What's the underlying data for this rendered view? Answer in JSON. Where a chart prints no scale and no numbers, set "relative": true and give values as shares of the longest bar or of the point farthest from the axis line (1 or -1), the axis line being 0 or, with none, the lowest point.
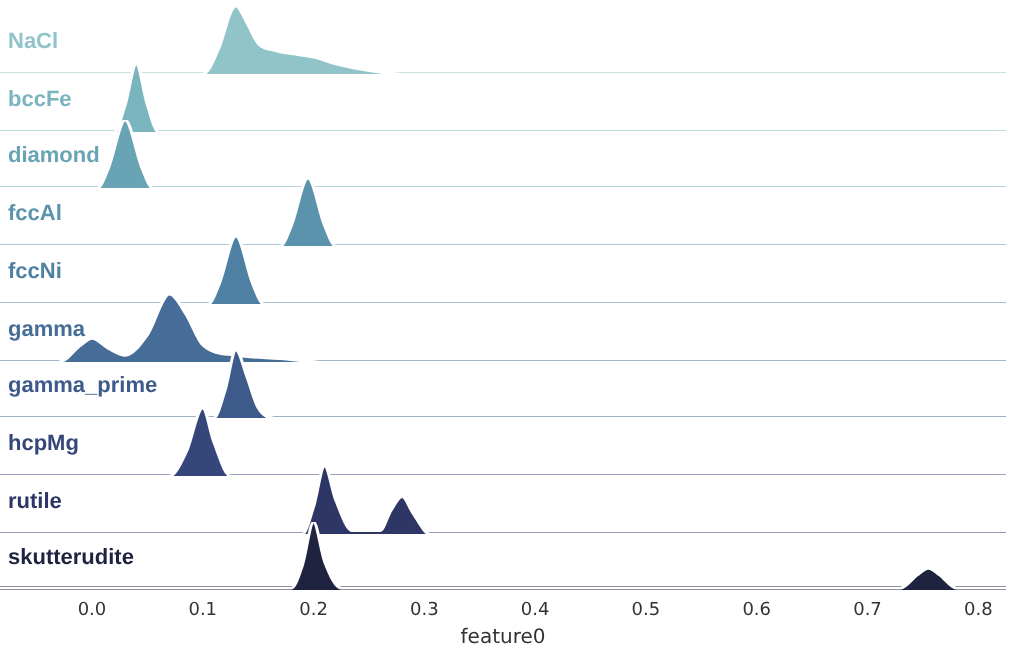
{
  "chart_data": [
    {
      "type": "area",
      "title": "NaCl",
      "x": [
        -0.083,
        0.1,
        0.115,
        0.125,
        0.13,
        0.14,
        0.15,
        0.165,
        0.18,
        0.2,
        0.22,
        0.25,
        0.28,
        0.825
      ],
      "values": [
        0,
        0,
        0.4,
        0.9,
        1,
        0.75,
        0.45,
        0.35,
        0.3,
        0.25,
        0.15,
        0.05,
        0,
        0
      ],
      "color": "#90c4c9",
      "relative": true,
      "xlim": [
        -0.083,
        0.825
      ],
      "tick_labels": false
    },
    {
      "type": "area",
      "title": "bccFe",
      "x": [
        -0.083,
        0.02,
        0.03,
        0.04,
        0.05,
        0.06,
        0.825
      ],
      "values": [
        0,
        0,
        0.4,
        1,
        0.4,
        0,
        0
      ],
      "color": "#7ab4bf",
      "relative": true,
      "xlim": [
        -0.083,
        0.825
      ],
      "tick_labels": false
    },
    {
      "type": "area",
      "title": "diamond",
      "x": [
        -0.083,
        0.005,
        0.015,
        0.03,
        0.045,
        0.055,
        0.825
      ],
      "values": [
        0,
        0,
        0.3,
        1,
        0.3,
        0,
        0
      ],
      "color": "#69a4b5",
      "relative": true,
      "xlim": [
        -0.083,
        0.825
      ],
      "tick_labels": false
    },
    {
      "type": "area",
      "title": "fccAl",
      "x": [
        -0.083,
        0.17,
        0.18,
        0.195,
        0.21,
        0.22,
        0.825
      ],
      "values": [
        0,
        0,
        0.3,
        1,
        0.3,
        0,
        0
      ],
      "color": "#5b93ac",
      "relative": true,
      "xlim": [
        -0.083,
        0.825
      ],
      "tick_labels": false
    },
    {
      "type": "area",
      "title": "fccNi",
      "x": [
        -0.083,
        0.105,
        0.115,
        0.13,
        0.145,
        0.155,
        0.825
      ],
      "values": [
        0,
        0,
        0.3,
        1,
        0.3,
        0,
        0
      ],
      "color": "#4e80a3",
      "relative": true,
      "xlim": [
        -0.083,
        0.825
      ],
      "tick_labels": false
    },
    {
      "type": "area",
      "title": "gamma",
      "x": [
        -0.083,
        -0.03,
        -0.01,
        0,
        0.015,
        0.03,
        0.05,
        0.07,
        0.085,
        0.1,
        0.13,
        0.17,
        0.21,
        0.825
      ],
      "values": [
        0,
        0,
        0.25,
        0.35,
        0.2,
        0.1,
        0.4,
        1,
        0.7,
        0.25,
        0.1,
        0.05,
        0,
        0
      ],
      "color": "#466d97",
      "relative": true,
      "xlim": [
        -0.083,
        0.825
      ],
      "tick_labels": false
    },
    {
      "type": "area",
      "title": "gamma_prime",
      "x": [
        -0.083,
        0.11,
        0.12,
        0.13,
        0.14,
        0.15,
        0.165,
        0.825
      ],
      "values": [
        0,
        0,
        0.4,
        1,
        0.6,
        0.15,
        0,
        0
      ],
      "color": "#3e5a8a",
      "relative": true,
      "xlim": [
        -0.083,
        0.825
      ],
      "tick_labels": false
    },
    {
      "type": "area",
      "title": "hcpMg",
      "x": [
        -0.083,
        0.07,
        0.085,
        0.1,
        0.11,
        0.125,
        0.825
      ],
      "values": [
        0,
        0,
        0.35,
        1,
        0.5,
        0,
        0
      ],
      "color": "#35477a",
      "relative": true,
      "xlim": [
        -0.083,
        0.825
      ],
      "tick_labels": false
    },
    {
      "type": "area",
      "title": "rutile",
      "x": [
        -0.083,
        0.19,
        0.2,
        0.21,
        0.22,
        0.235,
        0.26,
        0.27,
        0.28,
        0.29,
        0.305,
        0.825
      ],
      "values": [
        0,
        0,
        0.4,
        1,
        0.5,
        0.05,
        0.05,
        0.35,
        0.55,
        0.3,
        0,
        0
      ],
      "color": "#2d3665",
      "relative": true,
      "xlim": [
        -0.083,
        0.825
      ],
      "tick_labels": false
    },
    {
      "type": "area",
      "title": "skutterudite",
      "x": [
        -0.083,
        0.18,
        0.19,
        0.2,
        0.21,
        0.225,
        0.73,
        0.745,
        0.755,
        0.765,
        0.78,
        0.825
      ],
      "values": [
        0,
        0,
        0.35,
        1,
        0.4,
        0,
        0,
        0.2,
        0.3,
        0.2,
        0,
        0
      ],
      "color": "#1f2340",
      "relative": true,
      "xlim": [
        -0.083,
        0.825
      ],
      "xlabel": "feature0",
      "xticks": [
        {
          "value": 0,
          "label": "0.0"
        },
        {
          "value": 0.1,
          "label": "0.1"
        },
        {
          "value": 0.2,
          "label": "0.2"
        },
        {
          "value": 0.3,
          "label": "0.3"
        },
        {
          "value": 0.4,
          "label": "0.4"
        },
        {
          "value": 0.5,
          "label": "0.5"
        },
        {
          "value": 0.6,
          "label": "0.6"
        },
        {
          "value": 0.7,
          "label": "0.7"
        },
        {
          "value": 0.8,
          "label": "0.8"
        }
      ],
      "tick_labels": "x"
    }
  ]
}
